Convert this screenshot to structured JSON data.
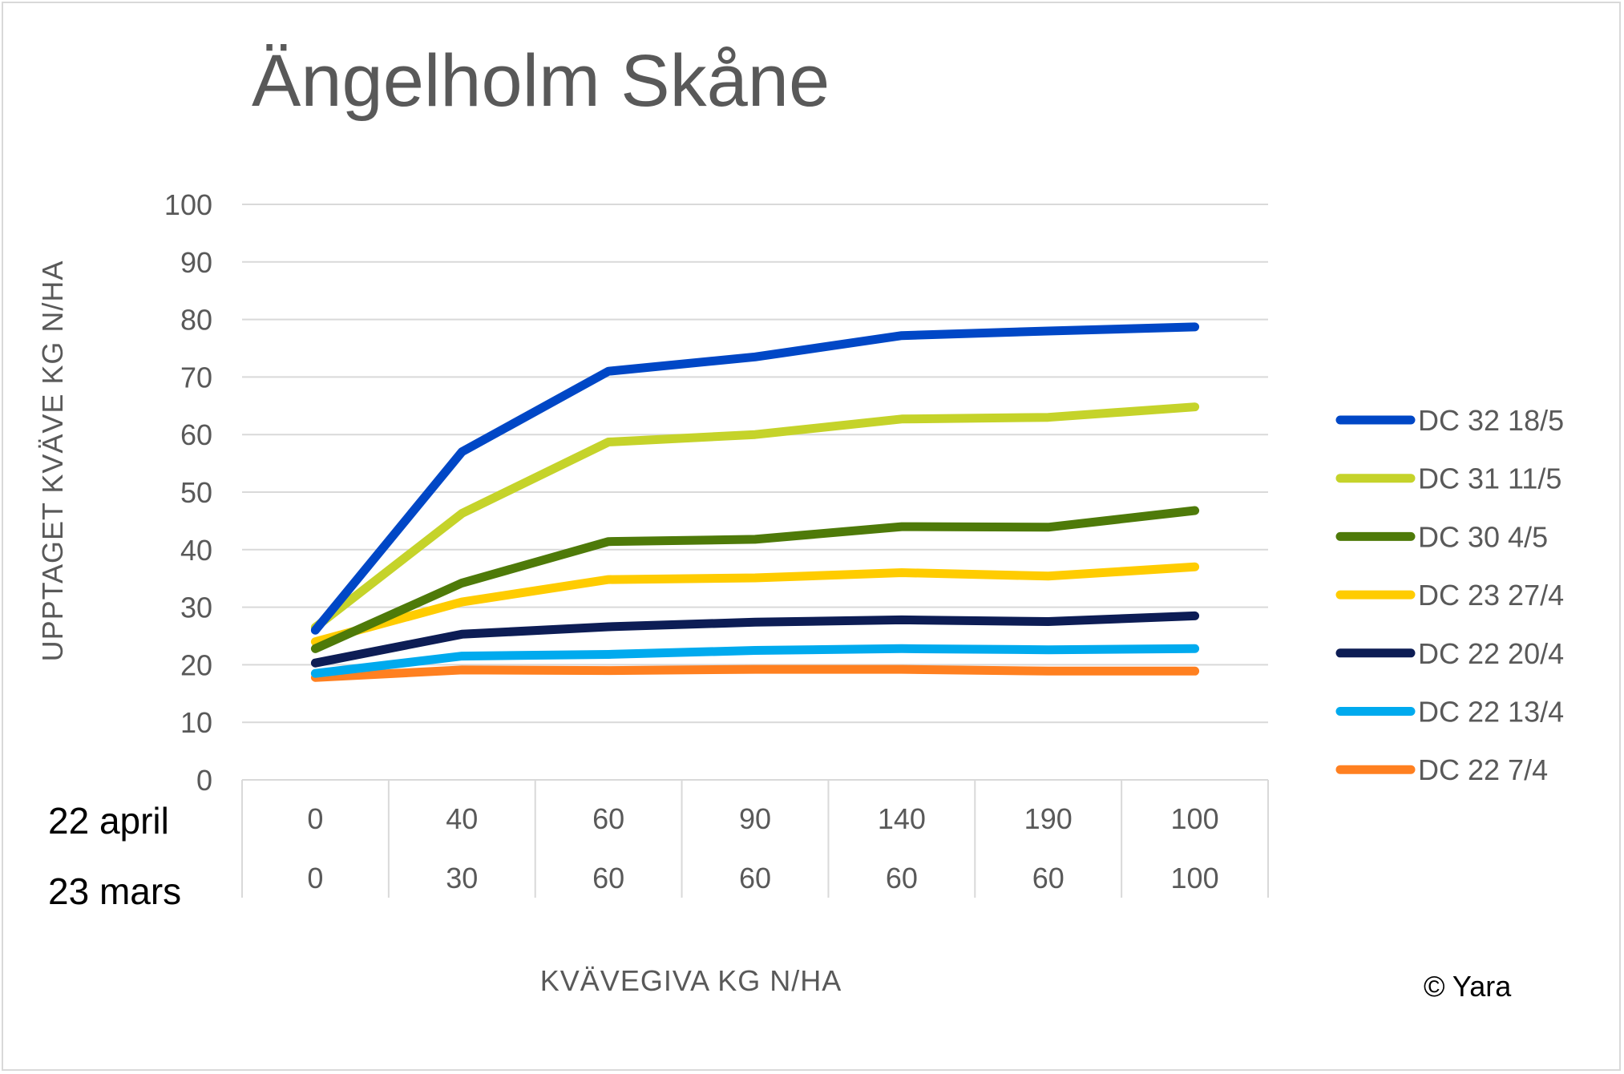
{
  "chart_data": {
    "type": "line",
    "title": "Ängelholm Skåne",
    "ylabel": "UPPTAGET KVÄVE KG N/HA",
    "xlabel": "KVÄVEGIVA  KG N/HA",
    "ylim": [
      0,
      100
    ],
    "yticks": [
      "0",
      "10",
      "20",
      "30",
      "40",
      "50",
      "60",
      "70",
      "80",
      "90",
      "100"
    ],
    "grid": true,
    "legend_position": "right",
    "category_rows": [
      {
        "label": "22 april",
        "values": [
          "0",
          "40",
          "60",
          "90",
          "140",
          "190",
          "100"
        ]
      },
      {
        "label": "23 mars",
        "values": [
          "0",
          "30",
          "60",
          "60",
          "60",
          "60",
          "100"
        ]
      }
    ],
    "series": [
      {
        "name": "DC 32 18/5",
        "color": "#0047c6",
        "values": [
          26,
          57,
          71,
          73.5,
          77.2,
          78,
          78.7
        ]
      },
      {
        "name": "DC 31 11/5",
        "color": "#c5d32a",
        "values": [
          26.5,
          46.3,
          58.7,
          60,
          62.7,
          63,
          64.8
        ]
      },
      {
        "name": "DC 30 4/5",
        "color": "#4e7a09",
        "values": [
          22.8,
          34.2,
          41.4,
          41.8,
          44,
          43.9,
          46.8
        ]
      },
      {
        "name": "DC 23 27/4",
        "color": "#ffcc00",
        "values": [
          24,
          30.9,
          34.8,
          35.1,
          36,
          35.4,
          37
        ]
      },
      {
        "name": "DC 22 20/4",
        "color": "#0d1d55",
        "values": [
          20.3,
          25.3,
          26.6,
          27.4,
          27.8,
          27.5,
          28.5
        ]
      },
      {
        "name": "DC 22 13/4",
        "color": "#00aaee",
        "values": [
          18.5,
          21.5,
          21.8,
          22.5,
          22.8,
          22.6,
          22.8
        ]
      },
      {
        "name": "DC 22 7/4",
        "color": "#ff8020",
        "values": [
          17.8,
          19.1,
          19,
          19.2,
          19.2,
          18.9,
          18.9
        ]
      }
    ]
  },
  "copyright": "© Yara",
  "colors": {
    "grid": "#d9d9d9",
    "axis_text": "#595959",
    "border": "#d9d9d9"
  }
}
